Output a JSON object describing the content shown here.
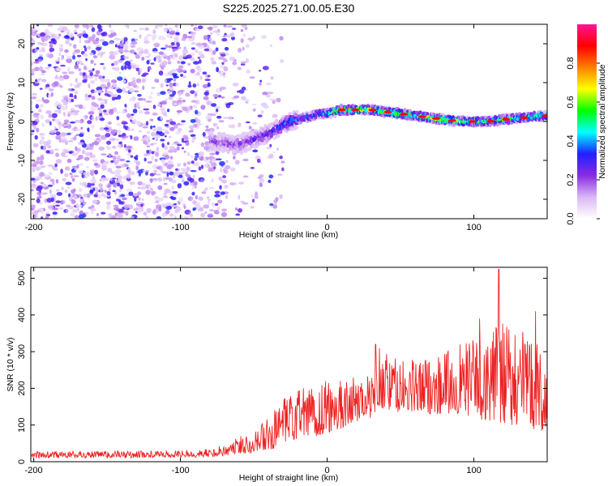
{
  "figure": {
    "title": "S225.2025.271.00.05.E30"
  },
  "chart_data": [
    {
      "type": "heatmap",
      "name": "spectrogram",
      "xlabel": "Height of straight line (km)",
      "ylabel": "Frequency (Hz)",
      "xlim": [
        -202,
        150
      ],
      "ylim": [
        -25,
        25
      ],
      "xticks": [
        -200,
        -100,
        0,
        100
      ],
      "yticks": [
        -20,
        -10,
        0,
        10,
        20
      ],
      "colorbar": {
        "label": "Normalized spectral amplitude",
        "range": [
          0,
          1
        ],
        "ticks": [
          0.0,
          0.2,
          0.4,
          0.6,
          0.8
        ],
        "tick_labels": [
          "0.0",
          "0.2",
          "0.4",
          "0.6",
          "0.8"
        ],
        "colormap": [
          "#ffffff",
          "#d9b8f5",
          "#8a2be2",
          "#2020ff",
          "#00ffff",
          "#00ff00",
          "#ffff00",
          "#ff8000",
          "#ff0000",
          "#ff1493"
        ]
      },
      "noise_region": {
        "x": [
          -202,
          -60
        ],
        "y": [
          -25,
          25
        ],
        "level": 0.12
      },
      "tone_track": {
        "x": [
          -80,
          -60,
          -45,
          -35,
          -25,
          -15,
          -5,
          0,
          10,
          20,
          30,
          40,
          50,
          60,
          70,
          80,
          90,
          100,
          110,
          120,
          130,
          140,
          150
        ],
        "freq": [
          -5,
          -6,
          -4,
          -2,
          0,
          1,
          2,
          2,
          3,
          3,
          3,
          2.5,
          2,
          1.5,
          1,
          0.5,
          0,
          0,
          0,
          0.5,
          0.8,
          1.2,
          1.5
        ],
        "amplitude": [
          0.25,
          0.25,
          0.3,
          0.35,
          0.4,
          0.45,
          0.5,
          0.55,
          0.8,
          0.75,
          0.75,
          0.7,
          0.8,
          0.7,
          0.8,
          0.7,
          0.8,
          0.7,
          0.65,
          0.7,
          0.6,
          0.65,
          0.6
        ]
      }
    },
    {
      "type": "line",
      "name": "snr",
      "xlabel": "Height of straight line (km)",
      "ylabel": "SNR (10 * v/v)",
      "xlim": [
        -202,
        150
      ],
      "ylim": [
        0,
        530
      ],
      "xticks": [
        -200,
        -100,
        0,
        100
      ],
      "yticks": [
        0,
        100,
        200,
        300,
        400,
        500
      ],
      "color": "#ee2222",
      "envelope": {
        "x": [
          -202,
          -150,
          -100,
          -80,
          -70,
          -60,
          -50,
          -40,
          -30,
          -20,
          -10,
          0,
          10,
          20,
          30,
          35,
          40,
          50,
          60,
          70,
          80,
          90,
          100,
          110,
          120,
          130,
          140,
          150
        ],
        "low": [
          10,
          10,
          12,
          12,
          15,
          20,
          25,
          30,
          40,
          60,
          60,
          70,
          90,
          110,
          120,
          150,
          140,
          130,
          130,
          130,
          130,
          130,
          120,
          110,
          100,
          100,
          90,
          80
        ],
        "high": [
          28,
          30,
          30,
          35,
          50,
          70,
          90,
          120,
          170,
          200,
          220,
          230,
          230,
          230,
          240,
          320,
          300,
          280,
          280,
          290,
          300,
          320,
          340,
          360,
          380,
          380,
          330,
          300
        ]
      },
      "spikes": [
        {
          "x": 33,
          "y": 320
        },
        {
          "x": 117,
          "y": 525
        },
        {
          "x": 142,
          "y": 410
        },
        {
          "x": 104,
          "y": 390
        }
      ]
    }
  ]
}
